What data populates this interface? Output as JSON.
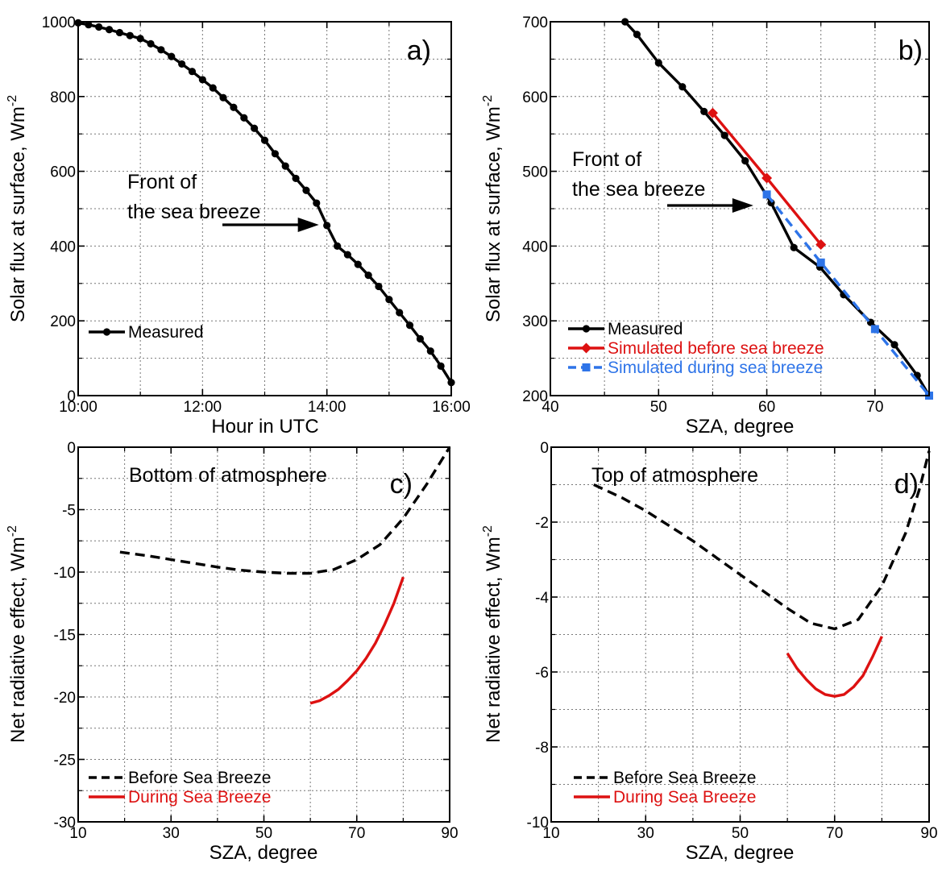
{
  "chart_data": [
    {
      "type": "line",
      "panel": "a)",
      "xlabel": "Hour in UTC",
      "ylabel": "Solar flux at surface, Wm",
      "ylabel_sup": "-2",
      "xlim": [
        10,
        16
      ],
      "ylim": [
        0,
        1000
      ],
      "x_ticks": [
        {
          "value": 10,
          "label": "10:00"
        },
        {
          "value": 12,
          "label": "12:00"
        },
        {
          "value": 14,
          "label": "14:00"
        },
        {
          "value": 16,
          "label": "16:00"
        }
      ],
      "y_ticks": [
        {
          "value": 0,
          "label": "0"
        },
        {
          "value": 200,
          "label": "200"
        },
        {
          "value": 400,
          "label": "400"
        },
        {
          "value": 600,
          "label": "600"
        },
        {
          "value": 800,
          "label": "800"
        },
        {
          "value": 1000,
          "label": "1000"
        }
      ],
      "grid": true,
      "legend_position": "lower-left",
      "annotation": {
        "lines": [
          "Front of",
          "the sea breeze"
        ],
        "arrow_to": {
          "x": 14.0,
          "y": 455
        }
      },
      "series": [
        {
          "name": "Measured",
          "color": "#000000",
          "marker": "circle",
          "dash": "solid",
          "x": [
            10.0,
            10.167,
            10.333,
            10.5,
            10.667,
            10.833,
            11.0,
            11.167,
            11.333,
            11.5,
            11.667,
            11.833,
            12.0,
            12.167,
            12.333,
            12.5,
            12.667,
            12.833,
            13.0,
            13.167,
            13.333,
            13.5,
            13.667,
            13.833,
            14.0,
            14.167,
            14.333,
            14.5,
            14.667,
            14.833,
            15.0,
            15.167,
            15.333,
            15.5,
            15.667,
            15.833,
            16.0
          ],
          "y": [
            997,
            992,
            986,
            979,
            971,
            963,
            955,
            941,
            925,
            907,
            887,
            867,
            845,
            823,
            797,
            771,
            743,
            715,
            683,
            647,
            614,
            581,
            549,
            515,
            455,
            400,
            377,
            351,
            322,
            292,
            257,
            222,
            188,
            152,
            119,
            79,
            35
          ]
        }
      ]
    },
    {
      "type": "line",
      "panel": "b)",
      "xlabel": "SZA, degree",
      "ylabel": "Solar flux at surface, Wm",
      "ylabel_sup": "-2",
      "xlim": [
        40,
        75
      ],
      "ylim": [
        200,
        700
      ],
      "x_ticks": [
        {
          "value": 40,
          "label": "40"
        },
        {
          "value": 50,
          "label": "50"
        },
        {
          "value": 60,
          "label": "60"
        },
        {
          "value": 70,
          "label": "70"
        }
      ],
      "y_ticks": [
        {
          "value": 200,
          "label": "200"
        },
        {
          "value": 300,
          "label": "300"
        },
        {
          "value": 400,
          "label": "400"
        },
        {
          "value": 500,
          "label": "500"
        },
        {
          "value": 600,
          "label": "600"
        },
        {
          "value": 700,
          "label": "700"
        }
      ],
      "grid": true,
      "legend_position": "lower-left",
      "annotation": {
        "lines": [
          "Front of",
          "the sea breeze"
        ],
        "arrow_to": {
          "x": 59.5,
          "y": 455
        }
      },
      "series": [
        {
          "name": "Measured",
          "color": "#000000",
          "marker": "circle",
          "dash": "solid",
          "x": [
            46.9,
            48.0,
            50.0,
            52.2,
            54.2,
            56.1,
            58.0,
            60.4,
            62.5,
            64.9,
            67.1,
            69.6,
            71.8,
            73.9,
            75.0
          ],
          "y": [
            700,
            683,
            645,
            613,
            580,
            548,
            514,
            458,
            398,
            372,
            335,
            298,
            268,
            227,
            200
          ]
        },
        {
          "name": "Simulated before sea breeze",
          "color": "#dd1111",
          "marker": "diamond",
          "dash": "solid",
          "x": [
            55,
            60,
            65
          ],
          "y": [
            578,
            491,
            402
          ]
        },
        {
          "name": "Simulated during sea breeze",
          "color": "#2e74e8",
          "marker": "square",
          "dash": "dashed",
          "x": [
            60,
            65,
            70,
            75
          ],
          "y": [
            469,
            378,
            289,
            200
          ]
        }
      ]
    },
    {
      "type": "line",
      "panel": "c)",
      "title": "Bottom of atmosphere",
      "xlabel": "SZA, degree",
      "ylabel": "Net radiative effect, Wm",
      "ylabel_sup": "-2",
      "xlim": [
        10,
        90
      ],
      "ylim": [
        -30,
        0
      ],
      "x_ticks": [
        {
          "value": 10,
          "label": "10"
        },
        {
          "value": 30,
          "label": "30"
        },
        {
          "value": 50,
          "label": "50"
        },
        {
          "value": 70,
          "label": "70"
        },
        {
          "value": 90,
          "label": "90"
        }
      ],
      "y_ticks": [
        {
          "value": -30,
          "label": "-30"
        },
        {
          "value": -25,
          "label": "-25"
        },
        {
          "value": -20,
          "label": "-20"
        },
        {
          "value": -15,
          "label": "-15"
        },
        {
          "value": -10,
          "label": "-10"
        },
        {
          "value": -5,
          "label": "-5"
        },
        {
          "value": 0,
          "label": "0"
        }
      ],
      "grid": true,
      "legend_position": "lower-left",
      "series": [
        {
          "name": "Before Sea Breeze",
          "color": "#000000",
          "dash": "dashed",
          "x": [
            19,
            25,
            30,
            35,
            40,
            45,
            50,
            55,
            60,
            65,
            70,
            75,
            80,
            85,
            90
          ],
          "y": [
            -8.4,
            -8.7,
            -9.0,
            -9.3,
            -9.6,
            -9.85,
            -10.0,
            -10.1,
            -10.1,
            -9.8,
            -9.0,
            -7.8,
            -5.7,
            -3.0,
            0.0
          ]
        },
        {
          "name": "During Sea Breeze",
          "color": "#dd1111",
          "dash": "solid",
          "x": [
            60,
            62,
            64,
            66,
            68,
            70,
            72,
            74,
            76,
            78,
            80
          ],
          "y": [
            -20.5,
            -20.3,
            -19.9,
            -19.4,
            -18.7,
            -17.9,
            -16.9,
            -15.7,
            -14.2,
            -12.5,
            -10.4
          ]
        }
      ]
    },
    {
      "type": "line",
      "panel": "d)",
      "title": "Top of atmosphere",
      "xlabel": "SZA, degree",
      "ylabel": "Net radiative effect, Wm",
      "ylabel_sup": "-2",
      "xlim": [
        10,
        90
      ],
      "ylim": [
        -10,
        0
      ],
      "x_ticks": [
        {
          "value": 10,
          "label": "10"
        },
        {
          "value": 30,
          "label": "30"
        },
        {
          "value": 50,
          "label": "50"
        },
        {
          "value": 70,
          "label": "70"
        },
        {
          "value": 90,
          "label": "90"
        }
      ],
      "y_ticks": [
        {
          "value": -10,
          "label": "-10"
        },
        {
          "value": -8,
          "label": "-8"
        },
        {
          "value": -6,
          "label": "-6"
        },
        {
          "value": -4,
          "label": "-4"
        },
        {
          "value": -2,
          "label": "-2"
        },
        {
          "value": 0,
          "label": "0"
        }
      ],
      "grid": true,
      "legend_position": "lower-left",
      "series": [
        {
          "name": "Before Sea Breeze",
          "color": "#000000",
          "dash": "dashed",
          "x": [
            19,
            25,
            30,
            35,
            40,
            45,
            50,
            55,
            60,
            65,
            70,
            75,
            80,
            85,
            88,
            90
          ],
          "y": [
            -1.0,
            -1.35,
            -1.7,
            -2.1,
            -2.5,
            -2.95,
            -3.4,
            -3.85,
            -4.3,
            -4.7,
            -4.85,
            -4.6,
            -3.7,
            -2.3,
            -1.1,
            -0.1
          ]
        },
        {
          "name": "During Sea Breeze",
          "color": "#dd1111",
          "dash": "solid",
          "x": [
            60,
            62,
            64,
            66,
            68,
            70,
            72,
            74,
            76,
            78,
            80
          ],
          "y": [
            -5.5,
            -5.9,
            -6.2,
            -6.45,
            -6.6,
            -6.65,
            -6.6,
            -6.4,
            -6.1,
            -5.6,
            -5.05
          ]
        }
      ]
    }
  ]
}
